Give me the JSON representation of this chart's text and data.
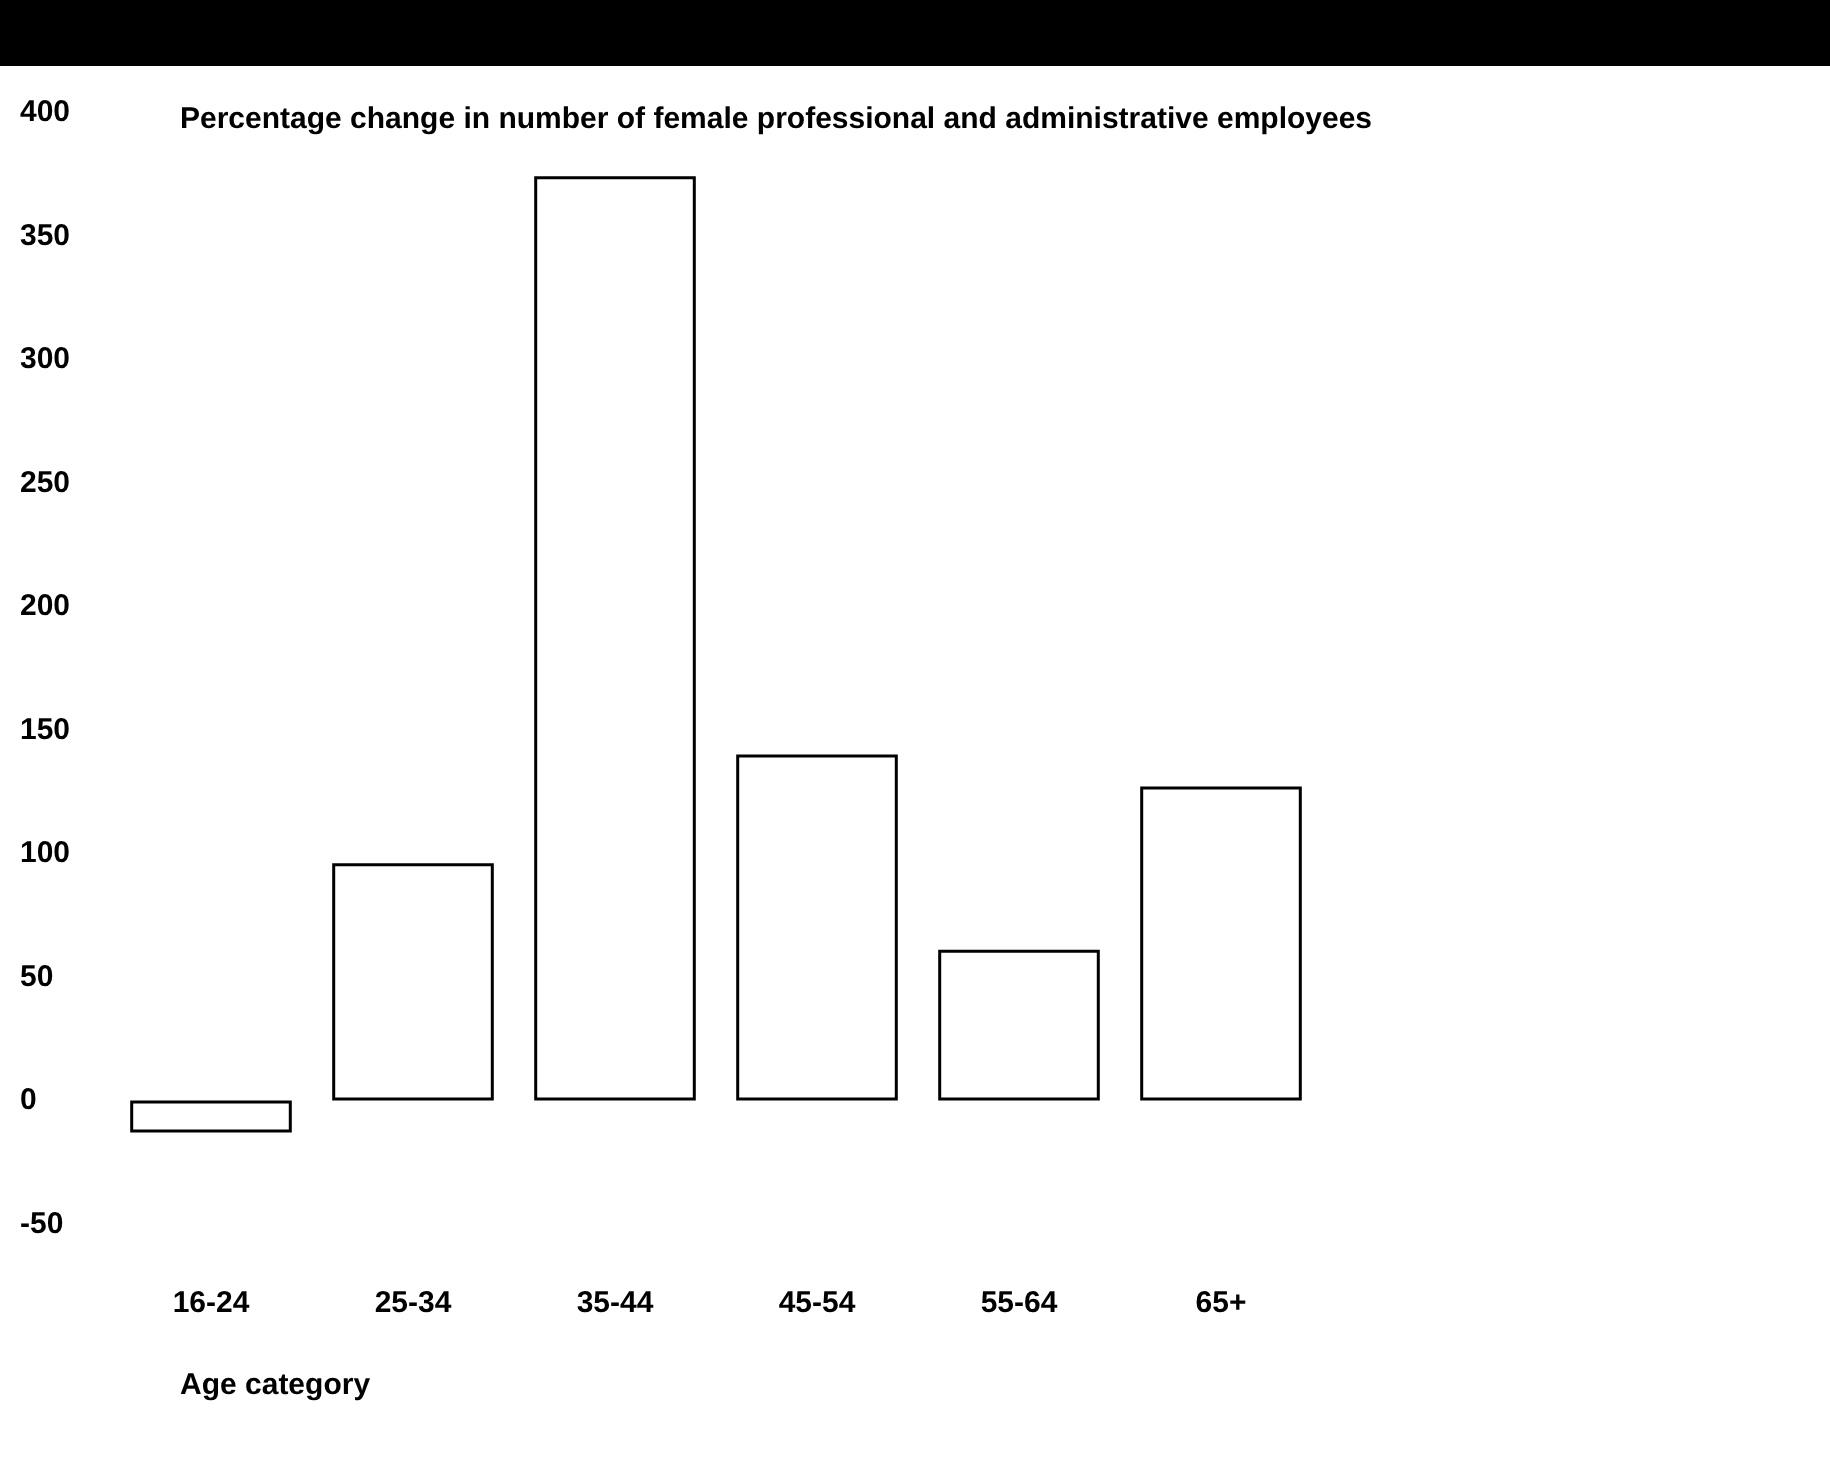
{
  "chart_data": {
    "type": "bar",
    "title": "Percentage change in number of female professional and administrative employees",
    "xlabel": "Age category",
    "categories": [
      "16-24",
      "25-34",
      "35-44",
      "45-54",
      "55-64",
      "65+"
    ],
    "values": [
      -13,
      96,
      374,
      140,
      61,
      127
    ],
    "color": "#ffffff",
    "ylim": [
      -50,
      400
    ],
    "yticks": [
      -50,
      0,
      50,
      100,
      150,
      200,
      250,
      300,
      350,
      400
    ],
    "grid": false
  }
}
